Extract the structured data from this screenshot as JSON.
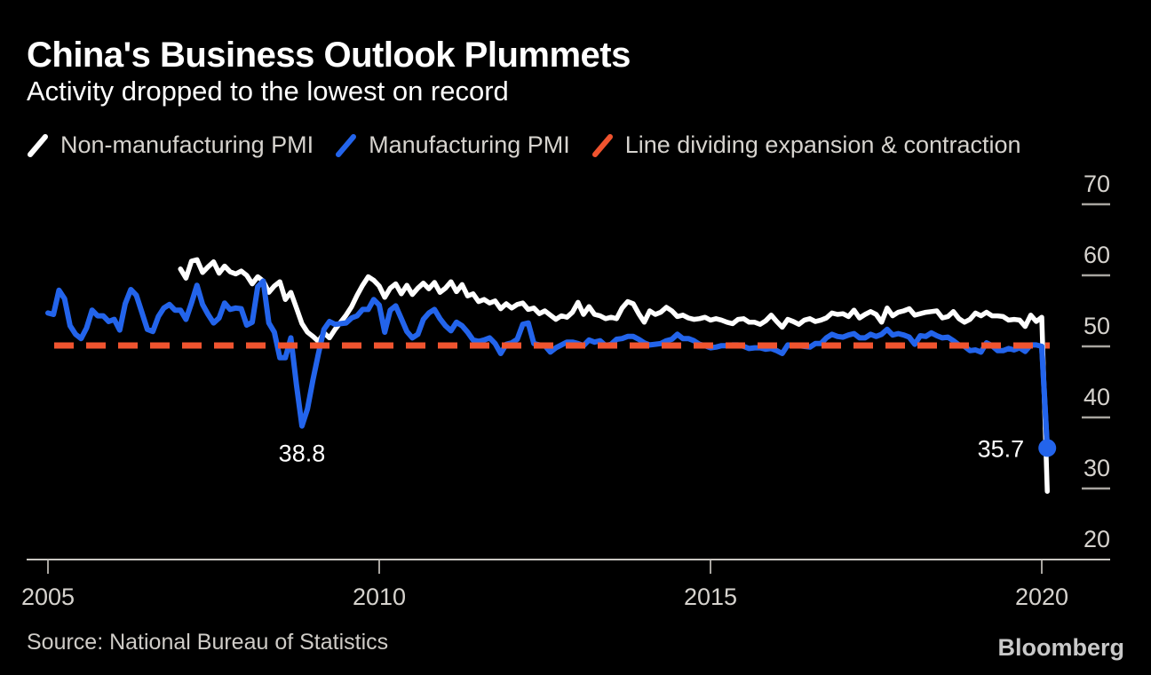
{
  "header": {
    "title": "China's Business Outlook Plummets",
    "subtitle": "Activity dropped to the lowest on record"
  },
  "legend": [
    {
      "label": "Non-manufacturing PMI",
      "color": "#ffffff"
    },
    {
      "label": "Manufacturing PMI",
      "color": "#2364eb"
    },
    {
      "label": "Line dividing expansion & contraction",
      "color": "#f0542f"
    }
  ],
  "chart_data": {
    "type": "line",
    "title": "China's Business Outlook Plummets",
    "subtitle": "Activity dropped to the lowest on record",
    "grid": false,
    "legend_position": "top",
    "x_axis": {
      "ticks": [
        2005,
        2010,
        2015,
        2020
      ],
      "range": [
        2004.7,
        2021.0
      ]
    },
    "y_axis": {
      "ticks": [
        20,
        30,
        40,
        50,
        60,
        70
      ],
      "range": [
        20,
        72
      ],
      "side": "right"
    },
    "axis_color": "#c8c5c0",
    "tick_color": "#a8a5a0",
    "reference_line": {
      "name": "Line dividing expansion & contraction",
      "value": 50,
      "style": "dashed",
      "color": "#f0542f"
    },
    "series": [
      {
        "name": "Non-manufacturing PMI",
        "color": "#ffffff",
        "frequency": "monthly",
        "start_year": 2007,
        "start_month": 1,
        "end": "2020-02",
        "values": [
          60.9,
          59.6,
          62.0,
          62.2,
          60.4,
          61.2,
          61.9,
          60.3,
          61.3,
          60.5,
          60.2,
          60.6,
          60.0,
          58.8,
          59.8,
          59.2,
          57.6,
          58.5,
          59.1,
          56.6,
          57.6,
          55.4,
          53.2,
          52.0,
          51.4,
          50.7,
          51.9,
          51.2,
          52.4,
          53.4,
          54.4,
          55.6,
          57.2,
          58.6,
          59.8,
          59.3,
          58.5,
          56.9,
          58.2,
          58.8,
          57.4,
          58.6,
          57.3,
          58.2,
          58.9,
          58.1,
          59.0,
          57.6,
          58.2,
          59.1,
          57.7,
          58.7,
          57.1,
          57.4,
          56.3,
          56.6,
          56.1,
          56.4,
          55.3,
          56.0,
          55.4,
          55.9,
          56.1,
          55.2,
          55.4,
          54.6,
          55.0,
          54.4,
          53.8,
          54.3,
          54.1,
          54.8,
          56.2,
          54.5,
          55.6,
          54.5,
          54.3,
          53.9,
          54.1,
          53.9,
          55.4,
          56.3,
          56.0,
          54.6,
          53.4,
          55.0,
          54.5,
          54.8,
          55.5,
          55.0,
          54.2,
          54.4,
          54.0,
          53.8,
          53.9,
          54.1,
          53.7,
          53.9,
          53.7,
          53.4,
          53.2,
          53.8,
          53.9,
          53.4,
          53.4,
          53.1,
          53.6,
          54.4,
          53.5,
          52.7,
          53.8,
          53.5,
          53.1,
          53.7,
          53.9,
          53.5,
          53.7,
          54.0,
          54.7,
          54.5,
          54.6,
          54.2,
          55.1,
          54.0,
          54.5,
          54.9,
          54.5,
          53.4,
          55.4,
          54.3,
          54.8,
          55.0,
          55.3,
          54.4,
          54.6,
          54.8,
          54.9,
          55.0,
          54.0,
          54.2,
          54.9,
          53.9,
          53.4,
          53.8,
          54.7,
          54.3,
          54.8,
          54.3,
          54.3,
          54.2,
          53.7,
          53.8,
          53.7,
          52.8,
          54.4,
          53.5,
          54.1,
          29.6
        ]
      },
      {
        "name": "Manufacturing PMI",
        "color": "#2364eb",
        "frequency": "monthly",
        "start_year": 2005,
        "start_month": 1,
        "end": "2020-02",
        "end_dot": true,
        "values": [
          54.7,
          54.5,
          57.9,
          56.7,
          52.9,
          51.7,
          51.1,
          52.6,
          55.1,
          54.3,
          54.3,
          53.5,
          53.8,
          52.3,
          56.0,
          58.0,
          57.2,
          54.8,
          52.4,
          52.1,
          54.2,
          55.4,
          55.9,
          55.1,
          55.1,
          53.8,
          56.1,
          58.6,
          55.9,
          54.5,
          53.3,
          54.0,
          56.1,
          55.2,
          55.4,
          55.3,
          53.0,
          53.4,
          58.4,
          59.2,
          53.3,
          52.0,
          48.4,
          48.4,
          51.2,
          44.6,
          38.8,
          41.2,
          45.3,
          49.0,
          52.4,
          53.5,
          53.1,
          53.2,
          53.3,
          54.0,
          54.3,
          55.2,
          55.2,
          56.6,
          55.8,
          52.0,
          55.1,
          55.7,
          53.9,
          52.1,
          51.2,
          51.7,
          53.8,
          54.7,
          55.2,
          53.9,
          52.9,
          52.2,
          53.4,
          52.9,
          52.0,
          50.9,
          50.7,
          50.9,
          51.2,
          50.4,
          49.0,
          50.3,
          50.5,
          51.0,
          53.1,
          53.3,
          50.4,
          50.2,
          50.1,
          49.2,
          49.8,
          50.2,
          50.6,
          50.6,
          50.4,
          50.1,
          50.9,
          50.6,
          50.8,
          50.1,
          50.3,
          51.0,
          51.1,
          51.4,
          51.4,
          51.0,
          50.5,
          50.2,
          50.3,
          50.4,
          50.8,
          51.0,
          51.7,
          51.1,
          51.1,
          50.8,
          50.3,
          50.1,
          49.8,
          49.9,
          50.1,
          50.1,
          50.2,
          50.2,
          50.0,
          49.7,
          49.8,
          49.8,
          49.6,
          49.7,
          49.4,
          49.0,
          50.2,
          50.1,
          50.1,
          50.0,
          49.9,
          50.4,
          50.4,
          51.2,
          51.7,
          51.4,
          51.3,
          51.6,
          51.8,
          51.2,
          51.2,
          51.7,
          51.4,
          51.7,
          52.4,
          51.6,
          51.8,
          51.6,
          51.3,
          50.3,
          51.5,
          51.4,
          51.9,
          51.5,
          51.2,
          51.3,
          50.8,
          50.2,
          50.0,
          49.4,
          49.5,
          49.2,
          50.5,
          50.1,
          49.4,
          49.4,
          49.7,
          49.5,
          49.8,
          49.3,
          50.2,
          50.2,
          50.0,
          35.7
        ]
      }
    ],
    "annotations": [
      {
        "text": "38.8",
        "series": "Manufacturing PMI",
        "date": "2008-11",
        "value": 38.8,
        "position": "below"
      },
      {
        "text": "35.7",
        "series": "Manufacturing PMI",
        "date": "2020-02",
        "value": 35.7,
        "position": "left"
      }
    ]
  },
  "footer": {
    "source": "Source: National Bureau of Statistics",
    "brand": "Bloomberg"
  }
}
